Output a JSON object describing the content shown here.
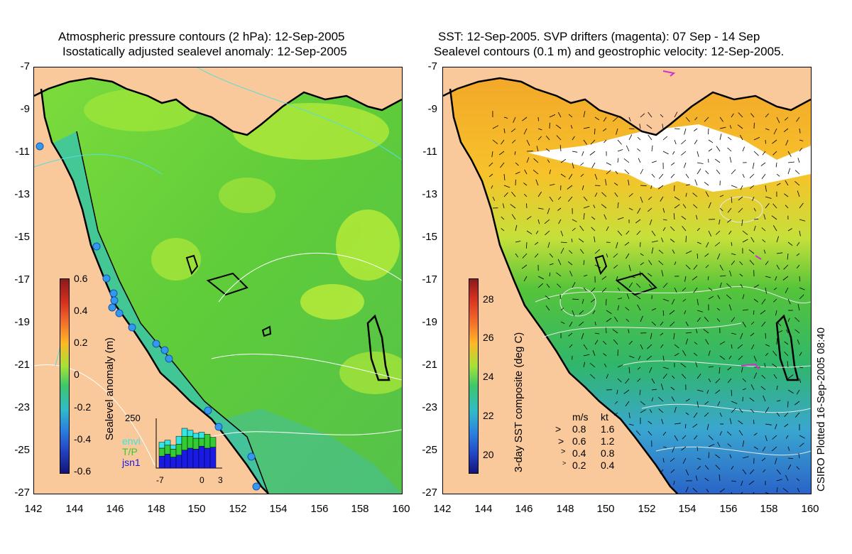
{
  "left_panel": {
    "title_line1": "Atmospheric pressure contours (2 hPa): 12-Sep-2005",
    "title_line2": "Isostatically adjusted sealevel anomaly: 12-Sep-2005",
    "colorbar": {
      "label": "Sealevel anomaly (m)",
      "ticks": [
        "0.6",
        "0.4",
        "0.2",
        "0",
        "-0.2",
        "-0.4",
        "-0.6"
      ],
      "min": -0.6,
      "max": 0.6
    },
    "inset": {
      "ymax_label": "250",
      "xtick_labels": [
        "-7",
        "0",
        "3"
      ],
      "series_labels": [
        "envi",
        "T/P",
        "jsn1"
      ],
      "series_colors": [
        "#33e6e6",
        "#33cc33",
        "#1a1ae6"
      ],
      "bars": [
        {
          "jsn1": 60,
          "tp": 40,
          "envi": 30
        },
        {
          "jsn1": 70,
          "tp": 45,
          "envi": 25
        },
        {
          "jsn1": 55,
          "tp": 40,
          "envi": 20
        },
        {
          "jsn1": 65,
          "tp": 55,
          "envi": 40
        },
        {
          "jsn1": 90,
          "tp": 70,
          "envi": 40
        },
        {
          "jsn1": 100,
          "tp": 60,
          "envi": 30
        },
        {
          "jsn1": 95,
          "tp": 55,
          "envi": 25
        },
        {
          "jsn1": 110,
          "tp": 40,
          "envi": 30
        },
        {
          "jsn1": 100,
          "tp": 70,
          "envi": 0
        },
        {
          "jsn1": 105,
          "tp": 50,
          "envi": 0
        }
      ]
    }
  },
  "right_panel": {
    "title_line1": "SST: 12-Sep-2005. SVP drifters (magenta): 07 Sep - 14 Sep",
    "title_line2": "Sealevel contours (0.1 m) and geostrophic velocity: 12-Sep-2005.",
    "colorbar": {
      "label": "3-day SST composite (deg C)",
      "ticks": [
        "28",
        "26",
        "24",
        "22",
        "20"
      ],
      "min": 19,
      "max": 29
    },
    "velocity_legend": {
      "header_ms": "m/s",
      "header_kt": "kt",
      "rows": [
        {
          "ms": "0.8",
          "kt": "1.6"
        },
        {
          "ms": "0.6",
          "kt": "1.2"
        },
        {
          "ms": "0.4",
          "kt": "0.8"
        },
        {
          "ms": "0.2",
          "kt": "0.4"
        }
      ]
    }
  },
  "axes": {
    "y_ticks": [
      "-7",
      "-9",
      "-11",
      "-13",
      "-15",
      "-17",
      "-19",
      "-21",
      "-23",
      "-25",
      "-27"
    ],
    "x_ticks": [
      "142",
      "144",
      "146",
      "148",
      "150",
      "152",
      "154",
      "156",
      "158",
      "160"
    ],
    "lat_range": [
      -27,
      -7
    ],
    "lon_range": [
      142,
      160
    ]
  },
  "credit": "CSIRO Plotted 16-Sep-2005 08:40",
  "colors": {
    "land": "#f9c89b",
    "ocean_green": "#66cc33",
    "coast": "#000000",
    "drifter": "#cc33cc"
  }
}
